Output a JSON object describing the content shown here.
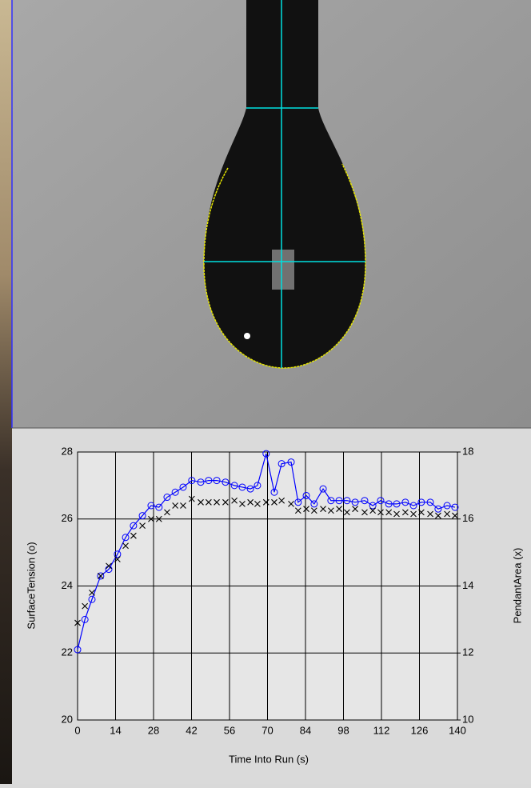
{
  "chart_data": {
    "type": "line",
    "x_label": "Time Into Run (s)",
    "y_label": "SurfaceTension (o)",
    "y2_label": "PendantArea (x)",
    "x": [
      0,
      2.7,
      5.3,
      8.5,
      11.5,
      14.7,
      17.7,
      20.6,
      23.9,
      27.1,
      30,
      33,
      36,
      38.9,
      42.1,
      45.4,
      48.3,
      51.3,
      54.5,
      57.8,
      60.7,
      63.7,
      66.3,
      69.5,
      72.5,
      75.2,
      78.7,
      81.3,
      84.3,
      87.2,
      90.5,
      93.4,
      96.4,
      99.3,
      102.3,
      105.8,
      108.8,
      111.7,
      114.7,
      117.6,
      120.8,
      123.8,
      126.7,
      130,
      132.9,
      136.2,
      139.1
    ],
    "series": [
      {
        "color": "#0000ff",
        "marker": "circle",
        "values": [
          22.1,
          23.0,
          23.6,
          24.3,
          24.5,
          24.95,
          25.45,
          25.8,
          26.1,
          26.4,
          26.35,
          26.65,
          26.8,
          26.95,
          27.15,
          27.1,
          27.15,
          27.15,
          27.1,
          27.0,
          26.95,
          26.9,
          27.0,
          27.95,
          26.8,
          27.65,
          27.7,
          26.5,
          26.7,
          26.45,
          26.9,
          26.55,
          26.55,
          26.55,
          26.5,
          26.55,
          26.4,
          26.55,
          26.45,
          26.45,
          26.5,
          26.4,
          26.5,
          26.5,
          26.3,
          26.4,
          26.35
        ]
      },
      {
        "color": "#000000",
        "marker": "x",
        "axis": "y2",
        "values": [
          12.9,
          13.4,
          13.8,
          14.3,
          14.6,
          14.8,
          15.2,
          15.5,
          15.8,
          16.0,
          16.0,
          16.2,
          16.4,
          16.4,
          16.6,
          16.5,
          16.5,
          16.5,
          16.5,
          16.55,
          16.45,
          16.5,
          16.45,
          16.5,
          16.5,
          16.55,
          16.45,
          16.25,
          16.3,
          16.25,
          16.3,
          16.25,
          16.3,
          16.2,
          16.3,
          16.2,
          16.25,
          16.2,
          16.2,
          16.15,
          16.2,
          16.15,
          16.2,
          16.15,
          16.1,
          16.15,
          16.1
        ]
      }
    ],
    "xlim": [
      0,
      140
    ],
    "xticks": [
      0,
      14,
      28,
      42,
      56,
      70,
      84,
      98,
      112,
      126,
      140
    ],
    "ylim": [
      20,
      28
    ],
    "yticks": [
      20,
      22,
      24,
      26,
      28
    ],
    "y2lim": [
      10,
      18
    ],
    "y2ticks": [
      10,
      12,
      14,
      16,
      18
    ],
    "grid": true
  }
}
